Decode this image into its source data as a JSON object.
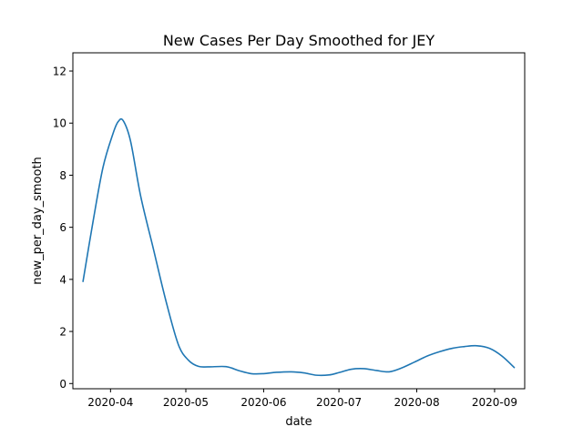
{
  "chart_data": {
    "type": "line",
    "title": "New Cases Per Day Smoothed for JEY",
    "xlabel": "date",
    "ylabel": "new_per_day_smooth",
    "x_axis_type": "date",
    "xlim": [
      "2020-03-17",
      "2020-09-13"
    ],
    "ylim": [
      -0.2,
      12.7
    ],
    "x_ticks": [
      "2020-04-01",
      "2020-05-01",
      "2020-06-01",
      "2020-07-01",
      "2020-08-01",
      "2020-09-01"
    ],
    "x_tick_labels": [
      "2020-04",
      "2020-05",
      "2020-06",
      "2020-07",
      "2020-08",
      "2020-09"
    ],
    "y_ticks": [
      0,
      2,
      4,
      6,
      8,
      10,
      12
    ],
    "y_tick_labels": [
      "0",
      "2",
      "4",
      "6",
      "8",
      "10",
      "12"
    ],
    "grid": false,
    "series": [
      {
        "color": "#1f77b4",
        "x": [
          "2020-03-21",
          "2020-03-25",
          "2020-03-29",
          "2020-04-02",
          "2020-04-04",
          "2020-04-06",
          "2020-04-09",
          "2020-04-13",
          "2020-04-18",
          "2020-04-23",
          "2020-04-28",
          "2020-05-02",
          "2020-05-06",
          "2020-05-10",
          "2020-05-17",
          "2020-05-22",
          "2020-05-27",
          "2020-06-01",
          "2020-06-06",
          "2020-06-12",
          "2020-06-17",
          "2020-06-22",
          "2020-06-27",
          "2020-07-01",
          "2020-07-06",
          "2020-07-11",
          "2020-07-16",
          "2020-07-21",
          "2020-07-26",
          "2020-07-31",
          "2020-08-05",
          "2020-08-10",
          "2020-08-15",
          "2020-08-20",
          "2020-08-25",
          "2020-08-30",
          "2020-09-04",
          "2020-09-09"
        ],
        "y": [
          3.9,
          6.2,
          8.3,
          9.6,
          10.05,
          10.1,
          9.3,
          7.2,
          5.2,
          3.2,
          1.5,
          0.9,
          0.66,
          0.64,
          0.65,
          0.5,
          0.38,
          0.38,
          0.43,
          0.45,
          0.41,
          0.32,
          0.33,
          0.42,
          0.55,
          0.57,
          0.5,
          0.45,
          0.6,
          0.82,
          1.05,
          1.22,
          1.35,
          1.42,
          1.45,
          1.35,
          1.05,
          0.6
        ]
      }
    ]
  }
}
